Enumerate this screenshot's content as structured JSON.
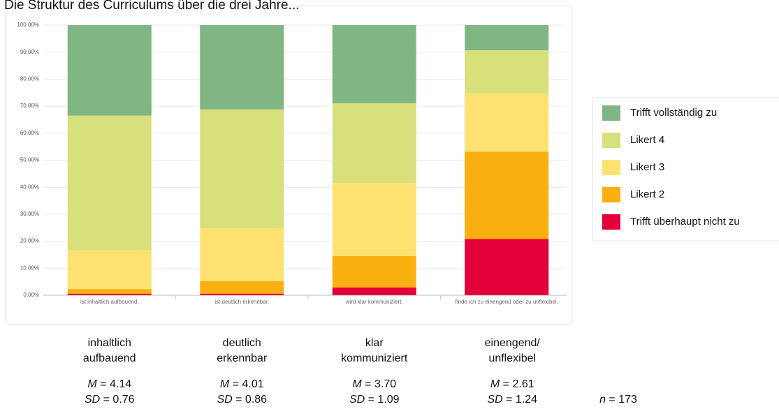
{
  "chart_data": {
    "type": "stacked_bar",
    "title": "Die Struktur des Curriculums über die drei Jahre...",
    "categories": [
      "ist inhaltlich aufbauend.",
      "ist deutlich erkennbar.",
      "wird klar kommuniziert.",
      "finde ich zu einengend oder zu unflexibel."
    ],
    "series": [
      {
        "name": "Trifft überhaupt nicht zu",
        "color": "#e4003a",
        "values": [
          0.6,
          0.6,
          2.9,
          20.8
        ]
      },
      {
        "name": "Likert 2",
        "color": "#fbb012",
        "values": [
          1.7,
          4.6,
          11.6,
          32.4
        ]
      },
      {
        "name": "Likert 3",
        "color": "#fde272",
        "values": [
          14.5,
          19.6,
          27.1,
          21.5
        ]
      },
      {
        "name": "Likert 4",
        "color": "#d7e07a",
        "values": [
          49.7,
          44.0,
          29.5,
          16.0
        ]
      },
      {
        "name": "Trifft vollständig  zu",
        "color": "#80b683",
        "values": [
          33.5,
          31.2,
          28.9,
          9.3
        ]
      }
    ],
    "ylim": [
      0,
      100
    ],
    "yticks": [
      {
        "value": 0,
        "label": "0.00%"
      },
      {
        "value": 10,
        "label": "10.00%"
      },
      {
        "value": 20,
        "label": "20.00%"
      },
      {
        "value": 30,
        "label": "30.00%"
      },
      {
        "value": 40,
        "label": "40.00%"
      },
      {
        "value": 50,
        "label": "50.00%"
      },
      {
        "value": 60,
        "label": "60.00%"
      },
      {
        "value": 70,
        "label": "70.00%"
      },
      {
        "value": 80,
        "label": "80.00%"
      },
      {
        "value": 90,
        "label": "90.00%"
      },
      {
        "value": 100,
        "label": "100.00%"
      }
    ],
    "grid": true,
    "legend": "right"
  },
  "annotations": {
    "equals": "=",
    "m_name": "M",
    "sd_name": "SD",
    "n_name": "n",
    "items": [
      {
        "label": "inhaltlich aufbauend",
        "M": "4.14",
        "SD": "0.76"
      },
      {
        "label": "deutlich erkennbar",
        "M": "4.01",
        "SD": "0.86"
      },
      {
        "label": "klar kommuniziert",
        "M": "3.70",
        "SD": "1.09"
      },
      {
        "label": "einengend/ unflexibel",
        "M": "2.61",
        "SD": "1.24"
      }
    ],
    "n": "173"
  }
}
